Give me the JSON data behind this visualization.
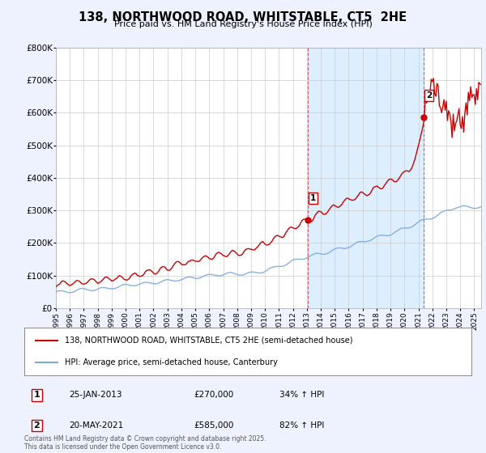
{
  "title": "138, NORTHWOOD ROAD, WHITSTABLE, CT5  2HE",
  "subtitle": "Price paid vs. HM Land Registry's House Price Index (HPI)",
  "red_label": "138, NORTHWOOD ROAD, WHITSTABLE, CT5 2HE (semi-detached house)",
  "blue_label": "HPI: Average price, semi-detached house, Canterbury",
  "ylim": [
    0,
    800000
  ],
  "yticks": [
    0,
    100000,
    200000,
    300000,
    400000,
    500000,
    600000,
    700000,
    800000
  ],
  "ytick_labels": [
    "£0",
    "£100K",
    "£200K",
    "£300K",
    "£400K",
    "£500K",
    "£600K",
    "£700K",
    "£800K"
  ],
  "red_color": "#cc0000",
  "blue_color": "#7aaadd",
  "shade_color": "#ddeeff",
  "marker1_x": 2013.07,
  "marker1_y": 270000,
  "marker2_x": 2021.38,
  "marker2_y": 585000,
  "vline1_x": 2013.07,
  "vline2_x": 2021.38,
  "background_color": "#eef2ff",
  "plot_bg": "#ffffff",
  "xmin": 1995,
  "xmax": 2025.5
}
